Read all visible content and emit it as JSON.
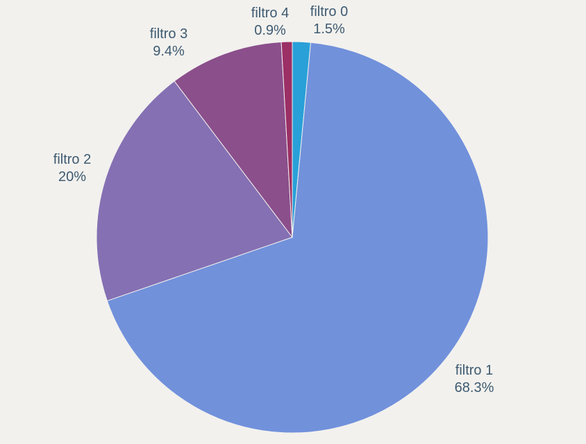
{
  "chart_data": {
    "type": "pie",
    "title": "",
    "start": "12 o'clock",
    "direction": "clockwise",
    "slices": [
      {
        "label": "filtro 0",
        "value": 1.5,
        "value_label": "1.5%",
        "color": "#29a0d8"
      },
      {
        "label": "filtro 1",
        "value": 68.3,
        "value_label": "68.3%",
        "color": "#7191db"
      },
      {
        "label": "filtro 2",
        "value": 20,
        "value_label": "20%",
        "color": "#8570b3"
      },
      {
        "label": "filtro 3",
        "value": 9.4,
        "value_label": "9.4%",
        "color": "#8b4f8c"
      },
      {
        "label": "filtro 4",
        "value": 0.9,
        "value_label": "0.9%",
        "color": "#9b2f66"
      }
    ],
    "legend": "none",
    "label_color": "#3e5a70",
    "background": "#f2f1ee"
  }
}
